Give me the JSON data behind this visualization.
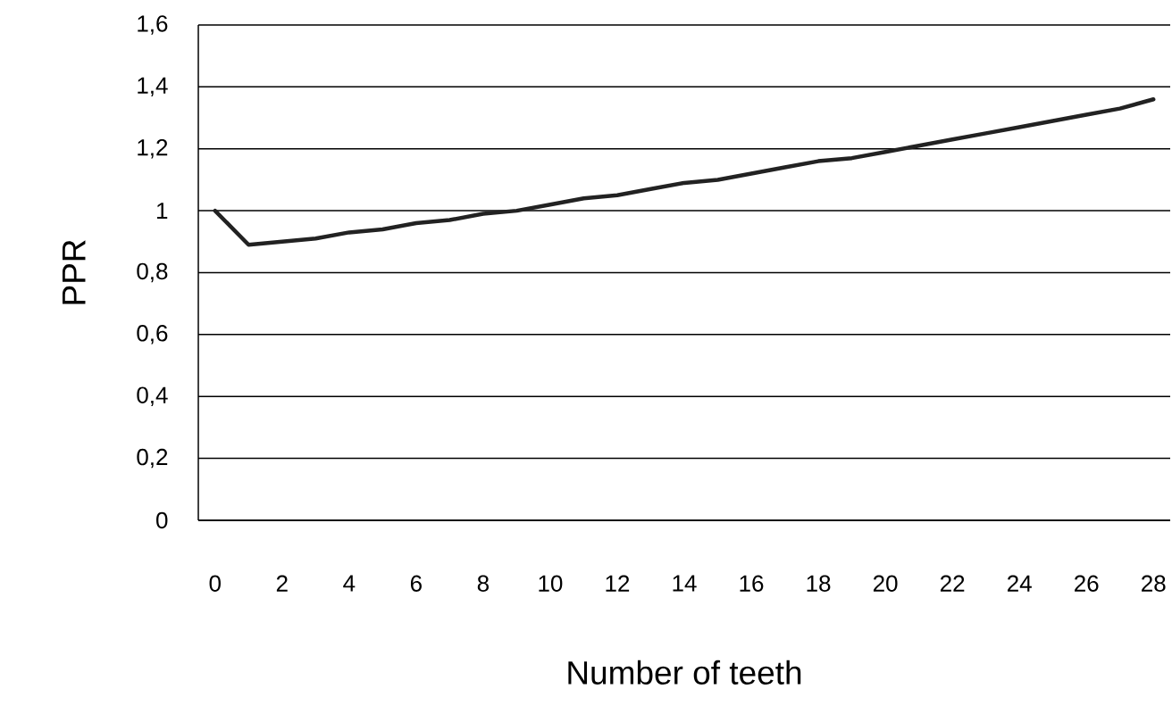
{
  "chart_data": {
    "type": "line",
    "xlabel": "Number of teeth",
    "ylabel": "PPR",
    "x": [
      0,
      1,
      2,
      3,
      4,
      5,
      6,
      7,
      8,
      9,
      10,
      11,
      12,
      13,
      14,
      15,
      16,
      17,
      18,
      19,
      20,
      21,
      22,
      23,
      24,
      25,
      26,
      27,
      28
    ],
    "series": [
      {
        "color": "#222222",
        "values": [
          1.0,
          0.89,
          0.9,
          0.91,
          0.93,
          0.94,
          0.96,
          0.97,
          0.99,
          1.0,
          1.02,
          1.04,
          1.05,
          1.07,
          1.09,
          1.1,
          1.12,
          1.14,
          1.16,
          1.17,
          1.19,
          1.21,
          1.23,
          1.25,
          1.27,
          1.29,
          1.31,
          1.33,
          1.36
        ]
      }
    ],
    "xlim": [
      -0.5,
      28.5
    ],
    "xticks": [
      0,
      2,
      4,
      6,
      8,
      10,
      12,
      14,
      16,
      18,
      20,
      22,
      24,
      26,
      28
    ],
    "ylim": [
      0,
      1.6
    ],
    "yticks": [
      0,
      {
        "value": 0.2,
        "label": "0,2"
      },
      {
        "value": 0.4,
        "label": "0,4"
      },
      {
        "value": 0.6,
        "label": "0,6"
      },
      {
        "value": 0.8,
        "label": "0,8"
      },
      1,
      {
        "value": 1.2,
        "label": "1,2"
      },
      {
        "value": 1.4,
        "label": "1,4"
      },
      {
        "value": 1.6,
        "label": "1,6"
      }
    ],
    "grid": "y",
    "marker": "none",
    "line_style": "solid"
  }
}
